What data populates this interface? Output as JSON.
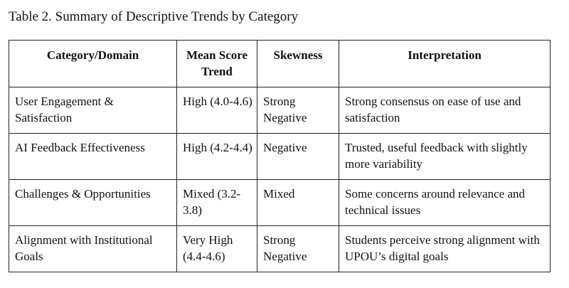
{
  "caption": "Table 2. Summary of Descriptive Trends by Category",
  "table": {
    "headers": [
      "Category/Domain",
      "Mean Score Trend",
      "Skewness",
      "Interpretation"
    ],
    "rows": [
      [
        "User Engagement & Satisfaction",
        "High (4.0-4.6)",
        "Strong Negative",
        "Strong consensus on ease of use and satisfaction"
      ],
      [
        "AI Feedback Effectiveness",
        "High (4.2-4.4)",
        "Negative",
        "Trusted, useful feedback with slightly more variability"
      ],
      [
        "Challenges & Opportunities",
        "Mixed (3.2-3.8)",
        "Mixed",
        "Some concerns around relevance and technical issues"
      ],
      [
        "Alignment with Institutional Goals",
        "Very High (4.4-4.6)",
        "Strong Negative",
        "Students perceive strong alignment with UPOU’s digital goals"
      ]
    ]
  }
}
